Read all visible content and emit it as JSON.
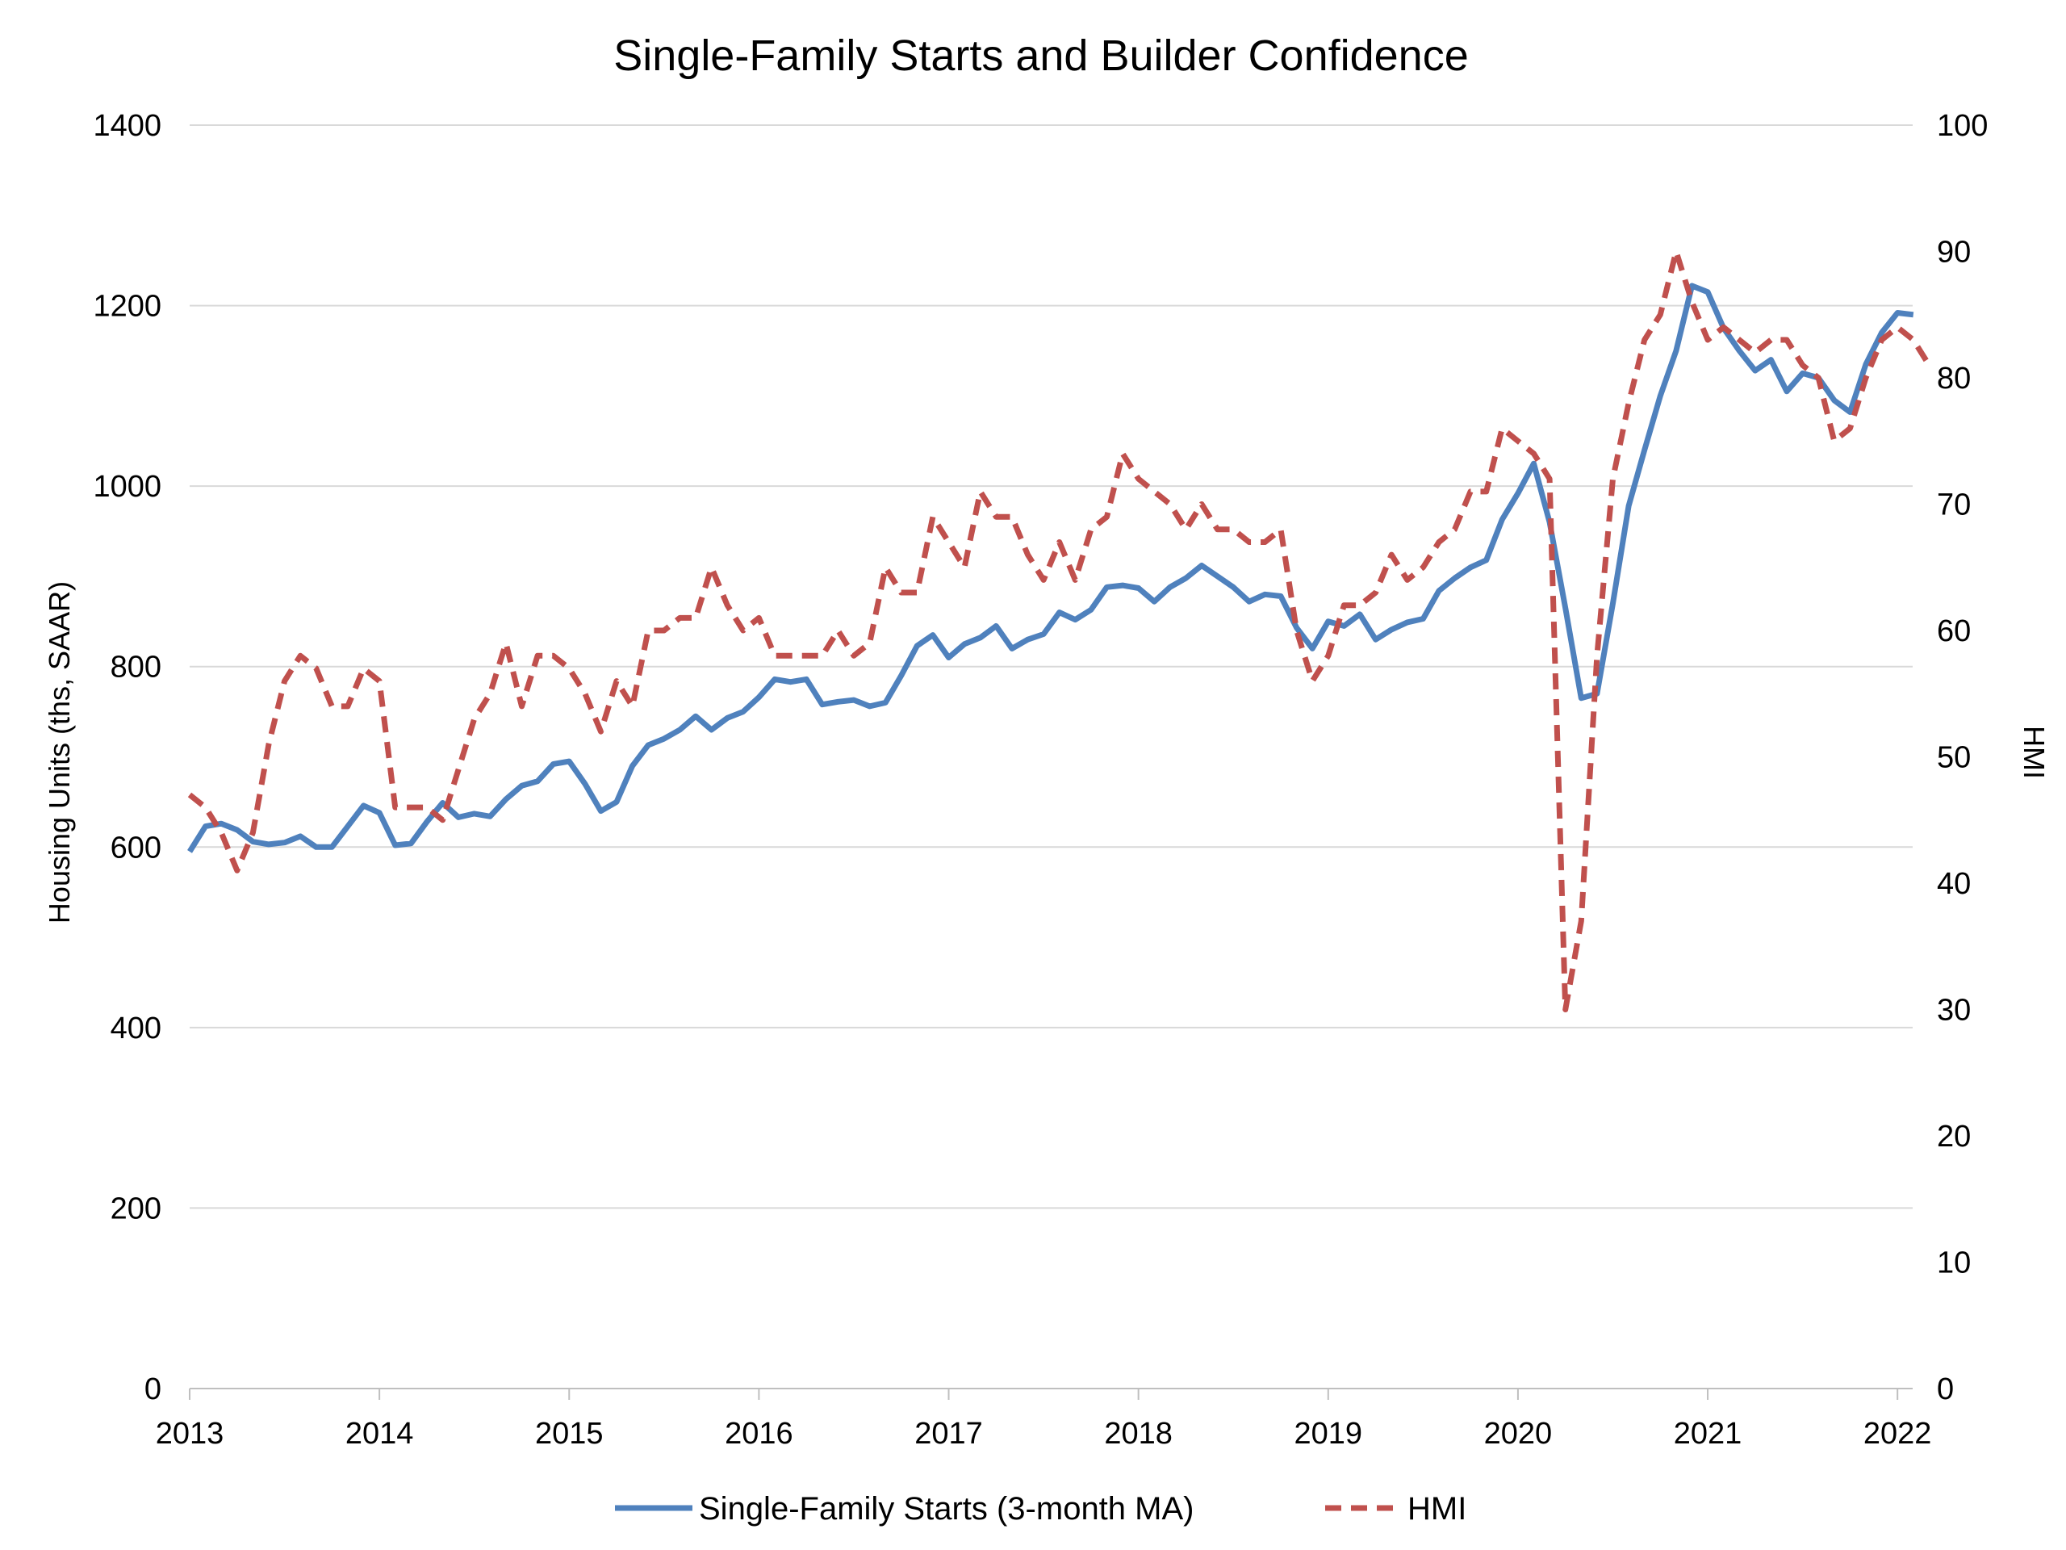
{
  "chart_data": {
    "type": "line",
    "title": "Single-Family Starts and Builder Confidence",
    "ylabel_left": "Housing Units (ths, SAAR)",
    "ylabel_right": "HMI",
    "xlabel": "",
    "xlim": [
      2013,
      2022.08
    ],
    "ylim_left": [
      0,
      1400
    ],
    "ylim_right": [
      0,
      100
    ],
    "x_ticks": [
      2013,
      2014,
      2015,
      2016,
      2017,
      2018,
      2019,
      2020,
      2021,
      2022
    ],
    "y_left_ticks": [
      0,
      200,
      400,
      600,
      800,
      1000,
      1200,
      1400
    ],
    "y_right_ticks": [
      0,
      10,
      20,
      30,
      40,
      50,
      60,
      70,
      80,
      90,
      100
    ],
    "grid": true,
    "legend_position": "bottom-center",
    "colors": {
      "starts": "#4F81BD",
      "hmi": "#C0504D",
      "grid": "#D9D9D9",
      "axis": "#BFBFBF"
    },
    "series": [
      {
        "name": "Single-Family Starts (3-month MA)",
        "axis": "left",
        "style": "solid",
        "start": "2013-01",
        "values": [
          595,
          623,
          626,
          619,
          606,
          603,
          605,
          612,
          600,
          600,
          623,
          646,
          638,
          602,
          604,
          628,
          649,
          633,
          637,
          634,
          653,
          668,
          673,
          692,
          695,
          670,
          640,
          650,
          690,
          713,
          720,
          730,
          745,
          730,
          743,
          750,
          766,
          786,
          783,
          786,
          758,
          761,
          763,
          756,
          760,
          790,
          823,
          835,
          810,
          825,
          832,
          845,
          820,
          830,
          836,
          860,
          852,
          863,
          888,
          890,
          887,
          872,
          888,
          898,
          912,
          900,
          888,
          872,
          880,
          878,
          843,
          820,
          850,
          845,
          858,
          830,
          841,
          849,
          853,
          884,
          898,
          910,
          918,
          963,
          992,
          1025,
          960,
          865,
          765,
          770,
          870,
          978,
          1040,
          1100,
          1150,
          1222,
          1215,
          1175,
          1150,
          1128,
          1140,
          1105,
          1125,
          1120,
          1095,
          1082,
          1135,
          1170,
          1192,
          1190
        ]
      },
      {
        "name": "HMI",
        "axis": "right",
        "style": "dashed",
        "start": "2013-01",
        "values": [
          47,
          46,
          44,
          41,
          44,
          51,
          56,
          58,
          57,
          54,
          54,
          57,
          56,
          46,
          46,
          46,
          45,
          49,
          53,
          55,
          59,
          54,
          58,
          58,
          57,
          55,
          52,
          56,
          54,
          60,
          60,
          61,
          61,
          65,
          62,
          60,
          61,
          58,
          58,
          58,
          58,
          60,
          58,
          59,
          65,
          63,
          63,
          69,
          67,
          65,
          71,
          69,
          69,
          66,
          64,
          67,
          64,
          68,
          69,
          74,
          72,
          71,
          70,
          68,
          70,
          68,
          68,
          67,
          67,
          68,
          60,
          56,
          58,
          62,
          62,
          63,
          66,
          64,
          65,
          67,
          68,
          71,
          71,
          76,
          75,
          74,
          72,
          30,
          37,
          58,
          72,
          78,
          83,
          85,
          90,
          86,
          83,
          84,
          83,
          82,
          83,
          83,
          81,
          80,
          75,
          76,
          80,
          83,
          84,
          83,
          81
        ]
      }
    ]
  }
}
